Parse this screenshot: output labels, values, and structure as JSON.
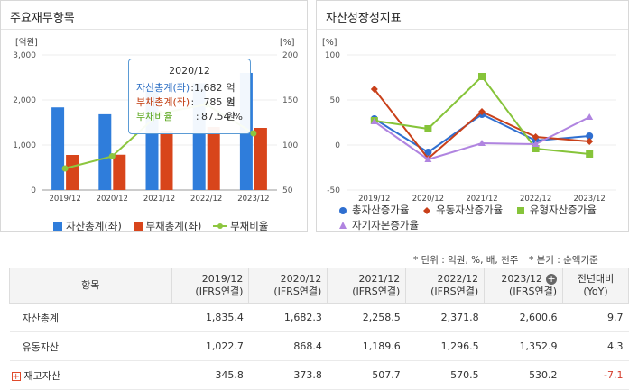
{
  "left_panel": {
    "title": "주요재무항목",
    "left_unit": "[억원]",
    "right_unit": "[%]",
    "legend": [
      "자산총계(좌)",
      "부채총계(좌)",
      "부채비율"
    ]
  },
  "right_panel": {
    "title": "자산성장성지표",
    "unit": "[%]",
    "legend": [
      "총자산증가율",
      "유동자산증가율",
      "유형자산증가율",
      "자기자본증가율"
    ]
  },
  "tooltip": {
    "title": "2020/12",
    "rows": [
      {
        "label": "자산총계(좌)",
        "sep": ":",
        "value": "1,682",
        "unit": "억원",
        "color": "#2d6fc4"
      },
      {
        "label": "부채총계(좌)",
        "sep": ":",
        "value": "785",
        "unit": "억원",
        "color": "#c0390b"
      },
      {
        "label": "부채비율",
        "sep": ":",
        "value": "87.54",
        "unit": "%",
        "color": "#5aa61d"
      }
    ]
  },
  "colors": {
    "asset_bar": "#2f7ddb",
    "liability_bar": "#d8451b",
    "ratio_line": "#8dc63f",
    "total_growth": "#2f6fd0",
    "current_growth": "#c9401a",
    "tangible_growth": "#86c43a",
    "equity_growth": "#b084e0",
    "negative_value": "#d43b2b"
  },
  "chart_data": [
    {
      "type": "bar",
      "title": "주요재무항목",
      "categories": [
        "2019/12",
        "2020/12",
        "2021/12",
        "2022/12",
        "2023/12"
      ],
      "series": [
        {
          "name": "자산총계(좌)",
          "values": [
            1835.4,
            1682.3,
            2258.5,
            2371.8,
            2600.6
          ]
        },
        {
          "name": "부채총계(좌)",
          "values": [
            780,
            785,
            1320,
            1400,
            1380
          ]
        },
        {
          "name": "부채비율",
          "values": [
            74,
            87.54,
            135,
            145,
            113
          ]
        }
      ],
      "ylim": [
        0,
        3000
      ],
      "y_ticks": [
        "0",
        "1,000",
        "2,000",
        "3,000"
      ],
      "y2lim": [
        50,
        200
      ],
      "y2_ticks": [
        "50",
        "100",
        "150",
        "200"
      ],
      "legend": "bottom"
    },
    {
      "type": "line",
      "title": "자산성장성지표",
      "categories": [
        "2019/12",
        "2020/12",
        "2021/12",
        "2022/12",
        "2023/12"
      ],
      "series": [
        {
          "name": "총자산증가율",
          "values": [
            29,
            -8,
            34,
            5,
            10
          ]
        },
        {
          "name": "유동자산증가율",
          "values": [
            62,
            -15,
            37,
            9,
            4
          ]
        },
        {
          "name": "유형자산증가율",
          "values": [
            27,
            18,
            76,
            -4,
            -10
          ]
        },
        {
          "name": "자기자본증가율",
          "values": [
            26,
            -16,
            2,
            1,
            31
          ]
        }
      ],
      "ylim": [
        -50,
        100
      ],
      "y_ticks": [
        "-50",
        "0",
        "50",
        "100"
      ],
      "legend": "bottom"
    }
  ],
  "notes": {
    "unit": "* 단위 : 억원, %, 배, 천주",
    "quarter": "* 분기 : 순액기준"
  },
  "table": {
    "headers": [
      {
        "top": "항목",
        "bottom": ""
      },
      {
        "top": "2019/12",
        "bottom": "(IFRS연결)"
      },
      {
        "top": "2020/12",
        "bottom": "(IFRS연결)"
      },
      {
        "top": "2021/12",
        "bottom": "(IFRS연결)"
      },
      {
        "top": "2022/12",
        "bottom": "(IFRS연결)"
      },
      {
        "top": "2023/12",
        "bottom": "(IFRS연결)"
      },
      {
        "top": "전년대비",
        "bottom": "(YoY)"
      }
    ],
    "rows": [
      {
        "label": "자산총계",
        "expand": false,
        "values": [
          "1,835.4",
          "1,682.3",
          "2,258.5",
          "2,371.8",
          "2,600.6",
          "9.7"
        ]
      },
      {
        "label": "유동자산",
        "expand": false,
        "values": [
          "1,022.7",
          "868.4",
          "1,189.6",
          "1,296.5",
          "1,352.9",
          "4.3"
        ]
      },
      {
        "label": "재고자산",
        "expand": true,
        "values": [
          "345.8",
          "373.8",
          "507.7",
          "570.5",
          "530.2",
          "-7.1"
        ]
      }
    ]
  }
}
